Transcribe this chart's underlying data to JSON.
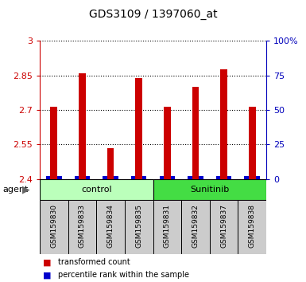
{
  "title": "GDS3109 / 1397060_at",
  "samples": [
    "GSM159830",
    "GSM159833",
    "GSM159834",
    "GSM159835",
    "GSM159831",
    "GSM159832",
    "GSM159837",
    "GSM159838"
  ],
  "red_values": [
    2.715,
    2.86,
    2.535,
    2.84,
    2.715,
    2.8,
    2.875,
    2.715
  ],
  "blue_pct_values": [
    2,
    2,
    2,
    2,
    2,
    2,
    2,
    2
  ],
  "ylim_left": [
    2.4,
    3.0
  ],
  "ylim_right": [
    0,
    100
  ],
  "yticks_left": [
    2.4,
    2.55,
    2.7,
    2.85,
    3.0
  ],
  "yticks_right": [
    0,
    25,
    50,
    75,
    100
  ],
  "ytick_labels_left": [
    "2.4",
    "2.55",
    "2.7",
    "2.85",
    "3"
  ],
  "ytick_labels_right": [
    "0",
    "25",
    "50",
    "75",
    "100%"
  ],
  "groups": [
    {
      "label": "control",
      "indices": [
        0,
        1,
        2,
        3
      ],
      "color": "#bbffbb"
    },
    {
      "label": "Sunitinib",
      "indices": [
        4,
        5,
        6,
        7
      ],
      "color": "#44dd44"
    }
  ],
  "agent_label": "agent",
  "bar_width": 0.55,
  "red_color": "#cc0000",
  "blue_color": "#0000cc",
  "axis_color_left": "#cc0000",
  "axis_color_right": "#0000bb",
  "grid_color": "black",
  "label_area_bg": "#cccccc",
  "legend_red": "transformed count",
  "legend_blue": "percentile rank within the sample"
}
